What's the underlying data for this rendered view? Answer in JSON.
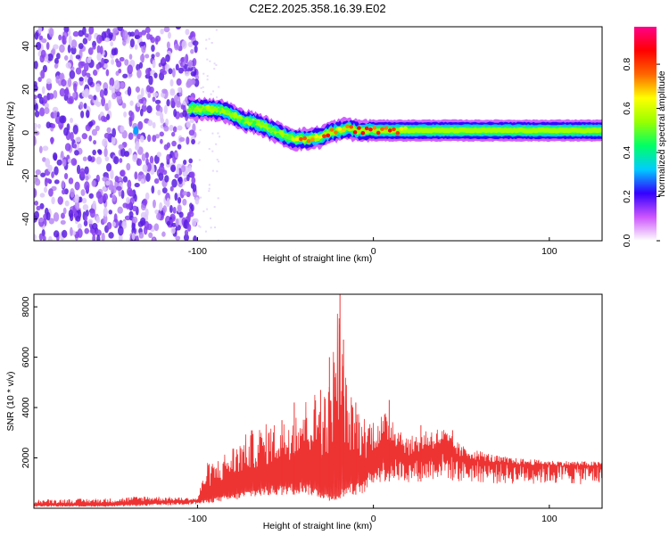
{
  "title": "C2E2.2025.358.16.39.E02",
  "chart_data": [
    {
      "type": "heatmap",
      "panel": "spectrogram",
      "xlabel": "Height of straight line (km)",
      "ylabel": "Frequency (Hz)",
      "xlim": [
        -193,
        130
      ],
      "ylim": [
        -50,
        49
      ],
      "x_ticks": [
        -100,
        0,
        100
      ],
      "y_ticks": [
        -40,
        -20,
        0,
        20,
        40
      ],
      "grid": false,
      "colorbar": {
        "label": "Normalized spectral amplitude",
        "range": [
          0,
          0.97
        ],
        "ticks": [
          0.0,
          0.2,
          0.4,
          0.6,
          0.8
        ],
        "colors": [
          "#ffffff",
          "#cc55ff",
          "#3300ff",
          "#00ccff",
          "#00ff66",
          "#99ff00",
          "#ffff00",
          "#ff6600",
          "#ff0000",
          "#ff0088"
        ]
      },
      "noise_region": {
        "x": [
          -193,
          -100
        ],
        "amplitude_approx": 0.15
      },
      "ridge": {
        "x": [
          -105,
          -95,
          -85,
          -75,
          -65,
          -55,
          -45,
          -38,
          -30,
          -25,
          -20,
          -15,
          -10,
          -5,
          0,
          10,
          20,
          40,
          60,
          80,
          100,
          130
        ],
        "frequency_hz": [
          11,
          11,
          10,
          6,
          4,
          0,
          -3,
          -3,
          -2,
          0,
          1,
          2,
          1,
          1,
          1,
          1,
          1,
          1,
          1,
          1,
          1,
          1
        ],
        "peak_amplitude": [
          0.5,
          0.6,
          0.55,
          0.55,
          0.5,
          0.55,
          0.6,
          0.9,
          0.7,
          0.9,
          0.7,
          0.9,
          0.9,
          0.9,
          0.9,
          0.9,
          0.6,
          0.45,
          0.45,
          0.4,
          0.4,
          0.4
        ]
      }
    },
    {
      "type": "line",
      "panel": "snr",
      "xlabel": "Height of straight line (km)",
      "ylabel": "SNR (10 * v/v)",
      "xlim": [
        -193,
        130
      ],
      "ylim": [
        0,
        8500
      ],
      "x_ticks": [
        -100,
        0,
        100
      ],
      "y_ticks": [
        2000,
        4000,
        6000,
        8000
      ],
      "grid": false,
      "color": "#ee3333",
      "envelope": {
        "x": [
          -193,
          -150,
          -130,
          -100,
          -95,
          -90,
          -80,
          -70,
          -60,
          -50,
          -45,
          -40,
          -35,
          -30,
          -25,
          -20,
          -15,
          -10,
          -5,
          0,
          10,
          20,
          30,
          40,
          50,
          60,
          70,
          80,
          100,
          130
        ],
        "baseline": [
          100,
          100,
          150,
          250,
          300,
          400,
          500,
          700,
          800,
          900,
          900,
          1000,
          800,
          700,
          500,
          600,
          900,
          900,
          1000,
          1600,
          1800,
          1700,
          1800,
          2000,
          1700,
          1700,
          1600,
          1600,
          1600,
          1550
        ],
        "peak": [
          350,
          400,
          500,
          400,
          1800,
          1900,
          2500,
          3100,
          3400,
          3500,
          4200,
          4300,
          4600,
          4700,
          5000,
          8500,
          4800,
          4200,
          3700,
          3600,
          3900,
          2800,
          3200,
          3200,
          2500,
          2300,
          2100,
          2000,
          1900,
          1850
        ]
      },
      "spikes": [
        {
          "x": -52,
          "y": 3500
        },
        {
          "x": -45,
          "y": 4200
        },
        {
          "x": -30,
          "y": 4700
        },
        {
          "x": -25,
          "y": 6000
        },
        {
          "x": -22,
          "y": 5200
        },
        {
          "x": -19,
          "y": 8500
        },
        {
          "x": -17,
          "y": 6700
        },
        {
          "x": -10,
          "y": 4200
        },
        {
          "x": 9,
          "y": 4300
        },
        {
          "x": 27,
          "y": 3300
        },
        {
          "x": 45,
          "y": 3100
        }
      ]
    }
  ]
}
